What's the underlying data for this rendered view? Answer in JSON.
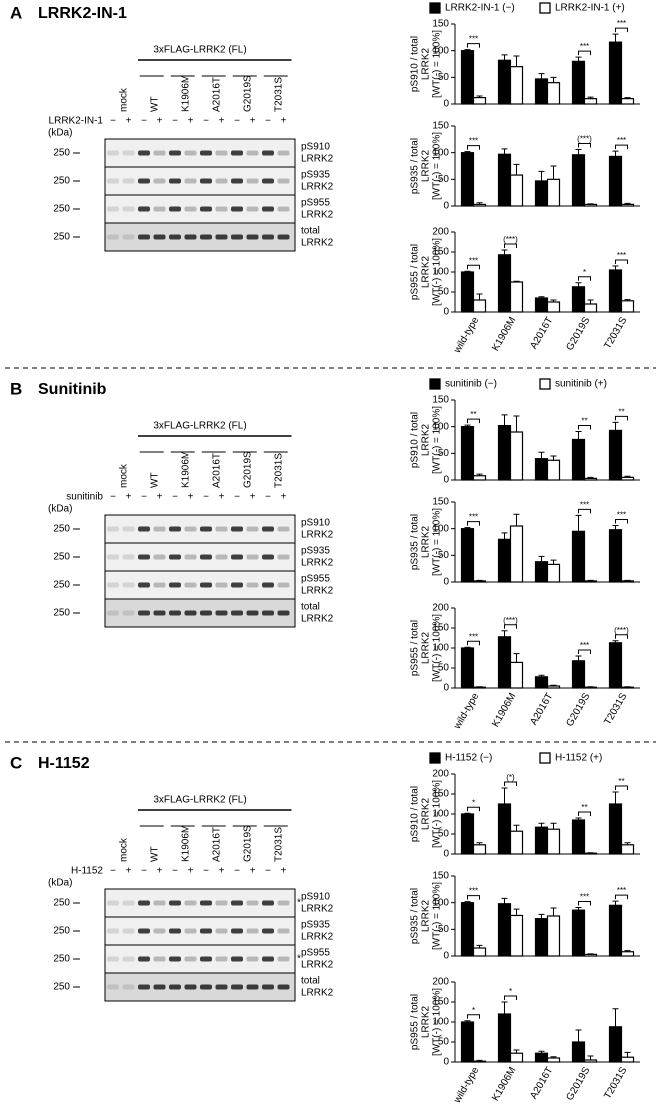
{
  "panels": [
    {
      "letter": "A",
      "title": "LRRK2-IN-1",
      "construct": "3xFLAG-LRRK2 (FL)",
      "lanes": [
        "mock",
        "WT",
        "K1906M",
        "A2016T",
        "G2019S",
        "T2031S"
      ],
      "treatment": "LRRK2-IN-1",
      "signs": [
        "−",
        "+",
        "−",
        "+",
        "−",
        "+",
        "−",
        "+",
        "−",
        "+",
        "−",
        "+"
      ],
      "kda": "(kDa)",
      "blots": [
        {
          "marker": "250",
          "label": [
            "pS910",
            "LRRK2"
          ]
        },
        {
          "marker": "250",
          "label": [
            "pS935",
            "LRRK2"
          ]
        },
        {
          "marker": "250",
          "label": [
            "pS955",
            "LRRK2"
          ]
        },
        {
          "marker": "250",
          "label": [
            "total",
            "LRRK2"
          ]
        }
      ]
    },
    {
      "letter": "B",
      "title": "Sunitinib",
      "construct": "3xFLAG-LRRK2 (FL)",
      "lanes": [
        "mock",
        "WT",
        "K1906M",
        "A2016T",
        "G2019S",
        "T2031S"
      ],
      "treatment": "sunitinib",
      "signs": [
        "−",
        "+",
        "−",
        "+",
        "−",
        "+",
        "−",
        "+",
        "−",
        "+",
        "−",
        "+"
      ],
      "kda": "(kDa)",
      "blots": [
        {
          "marker": "250",
          "label": [
            "pS910",
            "LRRK2"
          ]
        },
        {
          "marker": "250",
          "label": [
            "pS935",
            "LRRK2"
          ]
        },
        {
          "marker": "250",
          "label": [
            "pS955",
            "LRRK2"
          ]
        },
        {
          "marker": "250",
          "label": [
            "total",
            "LRRK2"
          ]
        }
      ]
    },
    {
      "letter": "C",
      "title": "H-1152",
      "construct": "3xFLAG-LRRK2 (FL)",
      "lanes": [
        "mock",
        "WT",
        "K1906M",
        "A2016T",
        "G2019S",
        "T2031S"
      ],
      "treatment": "H-1152",
      "signs": [
        "−",
        "+",
        "−",
        "+",
        "−",
        "+",
        "−",
        "+",
        "−",
        "+",
        "−",
        "+"
      ],
      "kda": "(kDa)",
      "blots": [
        {
          "marker": "250",
          "label": [
            "pS910",
            "LRRK2"
          ],
          "note": "*"
        },
        {
          "marker": "250",
          "label": [
            "pS935",
            "LRRK2"
          ]
        },
        {
          "marker": "250",
          "label": [
            "pS955",
            "LRRK2"
          ],
          "note": "*"
        },
        {
          "marker": "250",
          "label": [
            "total",
            "LRRK2"
          ]
        }
      ]
    }
  ],
  "chart_data": [
    {
      "type": "bar",
      "ylabel": [
        "pS910 / total",
        "LRRK2",
        "[WT(-) = 100%]"
      ],
      "categories": [
        null,
        null,
        null,
        null,
        null
      ],
      "ylim": [
        0,
        150
      ],
      "yticks": [
        0,
        50,
        100,
        150
      ],
      "series": [
        {
          "name": "LRRK2-IN-1 (−)",
          "color": "#000000",
          "values": [
            100,
            82,
            47,
            80,
            116
          ],
          "errors": [
            2,
            10,
            10,
            8,
            15
          ]
        },
        {
          "name": "LRRK2-IN-1 (+)",
          "color": "#ffffff",
          "values": [
            12,
            70,
            40,
            10,
            10
          ],
          "errors": [
            3,
            20,
            10,
            3,
            2
          ]
        }
      ],
      "significance": [
        "***",
        null,
        null,
        "***",
        "***"
      ]
    },
    {
      "type": "bar",
      "ylabel": [
        "pS935 / total",
        "LRRK2",
        "[WT(-) = 100%]"
      ],
      "categories": [
        null,
        null,
        null,
        null,
        null
      ],
      "ylim": [
        0,
        150
      ],
      "yticks": [
        0,
        50,
        100,
        150
      ],
      "series": [
        {
          "color": "#000000",
          "values": [
            100,
            97,
            47,
            96,
            93
          ],
          "errors": [
            2,
            10,
            18,
            10,
            10
          ]
        },
        {
          "color": "#ffffff",
          "values": [
            3,
            58,
            50,
            3,
            3
          ],
          "errors": [
            3,
            20,
            25,
            1,
            2
          ]
        }
      ],
      "significance": [
        "***",
        null,
        null,
        "(***)",
        "***"
      ]
    },
    {
      "type": "bar",
      "ylabel": [
        "pS955 / total",
        "LRRK2",
        "[WT(-) = 100%]"
      ],
      "categories": [
        "wild-type",
        "K1906M",
        "A2016T",
        "G2019S",
        "T2031S"
      ],
      "ylim": [
        0,
        200
      ],
      "yticks": [
        0,
        50,
        100,
        150,
        200
      ],
      "series": [
        {
          "color": "#000000",
          "values": [
            100,
            143,
            35,
            63,
            105
          ],
          "errors": [
            2,
            12,
            3,
            10,
            10
          ]
        },
        {
          "color": "#ffffff",
          "values": [
            30,
            75,
            25,
            20,
            28
          ],
          "errors": [
            15,
            2,
            5,
            10,
            3
          ]
        }
      ],
      "significance": [
        "***",
        "(***)",
        null,
        "*",
        "***"
      ]
    },
    {
      "type": "bar",
      "ylabel": [
        "pS910 / total",
        "LRRK2",
        "[WT(-) = 100%]"
      ],
      "categories": [
        null,
        null,
        null,
        null,
        null
      ],
      "ylim": [
        0,
        150
      ],
      "yticks": [
        0,
        50,
        100,
        150
      ],
      "series": [
        {
          "name": "sunitinib (−)",
          "color": "#000000",
          "values": [
            100,
            102,
            40,
            76,
            93
          ],
          "errors": [
            3,
            20,
            12,
            15,
            15
          ]
        },
        {
          "name": "sunitinib (+)",
          "color": "#ffffff",
          "values": [
            8,
            90,
            37,
            3,
            5
          ],
          "errors": [
            3,
            30,
            8,
            2,
            2
          ]
        }
      ],
      "significance": [
        "**",
        null,
        null,
        "**",
        "**"
      ]
    },
    {
      "type": "bar",
      "ylabel": [
        "pS935 / total",
        "LRRK2",
        "[WT(-) = 100%]"
      ],
      "categories": [
        null,
        null,
        null,
        null,
        null
      ],
      "ylim": [
        0,
        150
      ],
      "yticks": [
        0,
        50,
        100,
        150
      ],
      "series": [
        {
          "color": "#000000",
          "values": [
            100,
            80,
            38,
            95,
            98
          ],
          "errors": [
            2,
            12,
            10,
            30,
            8
          ]
        },
        {
          "color": "#ffffff",
          "values": [
            2,
            105,
            33,
            2,
            2
          ],
          "errors": [
            1,
            22,
            8,
            1,
            1
          ]
        }
      ],
      "significance": [
        "***",
        null,
        null,
        "***",
        "***"
      ]
    },
    {
      "type": "bar",
      "ylabel": [
        "pS955 / total",
        "LRRK2",
        "[WT(-) = 100%]"
      ],
      "categories": [
        "wild-type",
        "K1906M",
        "A2016T",
        "G2019S",
        "T2031S"
      ],
      "ylim": [
        0,
        200
      ],
      "yticks": [
        0,
        50,
        100,
        150,
        200
      ],
      "series": [
        {
          "color": "#000000",
          "values": [
            100,
            128,
            28,
            68,
            113
          ],
          "errors": [
            2,
            15,
            4,
            12,
            5
          ]
        },
        {
          "color": "#ffffff",
          "values": [
            2,
            64,
            5,
            2,
            2
          ],
          "errors": [
            1,
            22,
            2,
            1,
            1
          ]
        }
      ],
      "significance": [
        "***",
        "(***)",
        null,
        "***",
        "(***)"
      ]
    },
    {
      "type": "bar",
      "ylabel": [
        "pS910 / total",
        "LRRK2",
        "[WT(-) = 100%]"
      ],
      "categories": [
        null,
        null,
        null,
        null,
        null
      ],
      "ylim": [
        0,
        200
      ],
      "yticks": [
        0,
        50,
        100,
        150,
        200
      ],
      "series": [
        {
          "name": "H-1152 (−)",
          "color": "#000000",
          "values": [
            100,
            125,
            67,
            85,
            125
          ],
          "errors": [
            2,
            40,
            10,
            5,
            30
          ]
        },
        {
          "name": "H-1152 (+)",
          "color": "#ffffff",
          "values": [
            23,
            57,
            62,
            2,
            23
          ],
          "errors": [
            5,
            15,
            15,
            1,
            5
          ]
        }
      ],
      "significance": [
        "*",
        "(*)",
        null,
        "**",
        "**"
      ]
    },
    {
      "type": "bar",
      "ylabel": [
        "pS935 / total",
        "LRRK2",
        "[WT(-) = 100%]"
      ],
      "categories": [
        null,
        null,
        null,
        null,
        null
      ],
      "ylim": [
        0,
        150
      ],
      "yticks": [
        0,
        50,
        100,
        150
      ],
      "series": [
        {
          "color": "#000000",
          "values": [
            100,
            98,
            70,
            86,
            95
          ],
          "errors": [
            2,
            10,
            8,
            5,
            8
          ]
        },
        {
          "color": "#ffffff",
          "values": [
            15,
            76,
            75,
            3,
            8
          ],
          "errors": [
            5,
            12,
            15,
            1,
            2
          ]
        }
      ],
      "significance": [
        "***",
        null,
        null,
        "***",
        "***"
      ]
    },
    {
      "type": "bar",
      "ylabel": [
        "pS955 / total",
        "LRRK2",
        "[WT(-) = 100%]"
      ],
      "categories": [
        "wild-type",
        "K1906M",
        "A2016T",
        "G2019S",
        "T2031S"
      ],
      "ylim": [
        0,
        200
      ],
      "yticks": [
        0,
        50,
        100,
        150,
        200
      ],
      "series": [
        {
          "color": "#000000",
          "values": [
            100,
            120,
            22,
            50,
            88
          ],
          "errors": [
            3,
            30,
            5,
            30,
            45
          ]
        },
        {
          "color": "#ffffff",
          "values": [
            2,
            22,
            10,
            5,
            12
          ],
          "errors": [
            2,
            8,
            3,
            10,
            12
          ]
        }
      ],
      "significance": [
        "*",
        "*",
        null,
        null,
        null
      ]
    }
  ]
}
